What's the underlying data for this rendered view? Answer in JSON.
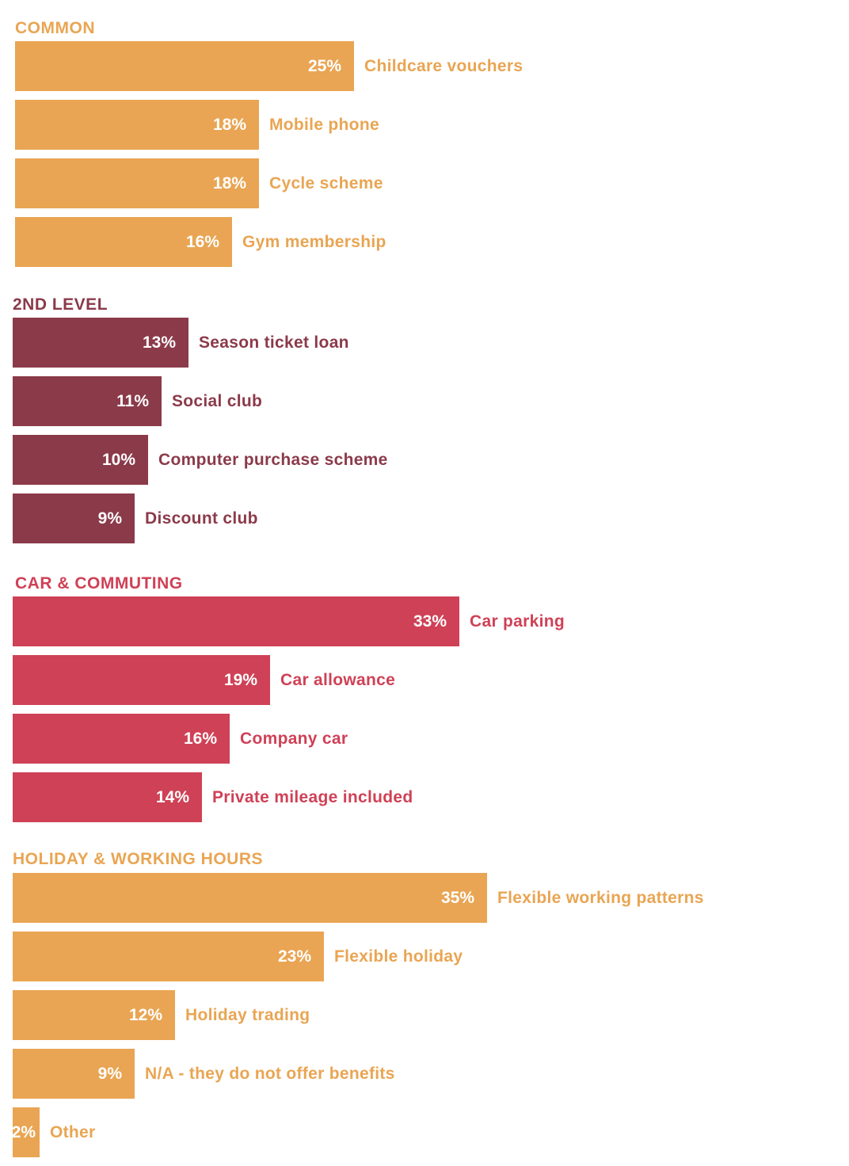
{
  "chart_data": {
    "type": "bar",
    "orientation": "horizontal",
    "unit": "%",
    "groups": [
      {
        "title": "COMMON",
        "color": "#E9A553",
        "categories": [
          "Childcare vouchers",
          "Mobile phone",
          "Cycle scheme",
          "Gym membership"
        ],
        "values": [
          25,
          18,
          18,
          16
        ],
        "labels": [
          "25%",
          "18%",
          "18%",
          "16%"
        ]
      },
      {
        "title": "2ND LEVEL",
        "color": "#8B3A4A",
        "categories": [
          "Season ticket loan",
          "Social club",
          "Computer purchase scheme",
          "Discount club"
        ],
        "values": [
          13,
          11,
          10,
          9
        ],
        "labels": [
          "13%",
          "11%",
          "10%",
          "9%"
        ]
      },
      {
        "title": "CAR & COMMUTING",
        "color": "#CF4156",
        "categories": [
          "Car parking",
          "Car allowance",
          "Company car",
          "Private mileage included"
        ],
        "values": [
          33,
          19,
          16,
          14
        ],
        "labels": [
          "33%",
          "19%",
          "16%",
          "14%"
        ]
      },
      {
        "title": "HOLIDAY & WORKING HOURS",
        "color": "#E9A553",
        "categories": [
          "Flexible working patterns",
          "Flexible holiday",
          "Holiday trading",
          "N/A - they do not offer benefits",
          "Other"
        ],
        "values": [
          35,
          23,
          12,
          9,
          2
        ],
        "labels": [
          "35%",
          "23%",
          "12%",
          "9%",
          "2%"
        ]
      }
    ]
  }
}
